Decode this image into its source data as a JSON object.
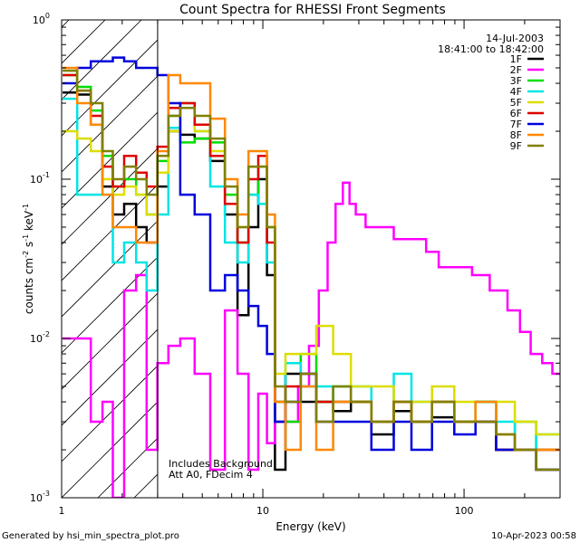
{
  "chart_data": {
    "type": "line",
    "title": "Count Spectra for RHESSI Front Segments",
    "xlabel": "Energy (keV)",
    "ylabel": {
      "prefix": "counts cm",
      "exp1": "-2",
      "mid1": " s",
      "exp2": "-1",
      "mid2": " keV",
      "exp3": "-1"
    },
    "xscale": "log",
    "yscale": "log",
    "xlim": [
      1,
      300
    ],
    "ylim": [
      0.001,
      1
    ],
    "x_ticks": [
      {
        "value": 1,
        "label": "1"
      },
      {
        "value": 10,
        "label": "10"
      },
      {
        "value": 100,
        "label": "100"
      }
    ],
    "y_ticks": [
      {
        "value": 0.001,
        "base": "10",
        "exp": "-3"
      },
      {
        "value": 0.01,
        "base": "10",
        "exp": "-2"
      },
      {
        "value": 0.1,
        "base": "10",
        "exp": "-1"
      },
      {
        "value": 1,
        "base": "10",
        "exp": "0"
      }
    ],
    "date_label": "14-Jul-2003",
    "time_label": "18:41:00 to 18:42:00",
    "annotations": [
      "Includes Background",
      "Att A0, FDecim 4"
    ],
    "hatched_region": [
      1,
      3
    ],
    "legend_position": "top-right",
    "series": [
      {
        "name": "1F",
        "color": "#000000",
        "x": [
          1.1,
          1.3,
          1.5,
          1.7,
          1.9,
          2.2,
          2.5,
          2.8,
          3.2,
          3.6,
          4.2,
          5,
          6,
          7,
          8,
          9,
          10,
          11,
          12,
          14,
          17,
          20,
          25,
          30,
          40,
          50,
          60,
          80,
          100,
          130,
          160,
          200,
          260
        ],
        "y": [
          0.35,
          0.34,
          0.22,
          0.09,
          0.06,
          0.07,
          0.05,
          0.04,
          0.09,
          0.2,
          0.19,
          0.18,
          0.13,
          0.06,
          0.014,
          0.05,
          0.1,
          0.025,
          0.0015,
          0.006,
          0.004,
          0.004,
          0.0035,
          0.004,
          0.0025,
          0.0035,
          0.003,
          0.0032,
          0.003,
          0.004,
          0.002,
          0.002,
          0.0015
        ]
      },
      {
        "name": "2F",
        "color": "#ff00ff",
        "x": [
          1.1,
          1.3,
          1.5,
          1.7,
          1.9,
          2.2,
          2.5,
          2.8,
          3.2,
          3.6,
          4.2,
          5,
          6,
          7,
          8,
          9,
          10,
          11,
          12,
          14,
          16,
          18,
          20,
          22,
          24,
          26,
          28,
          30,
          35,
          40,
          50,
          60,
          70,
          80,
          100,
          120,
          150,
          180,
          200,
          230,
          260,
          290
        ],
        "y": [
          0.01,
          0.01,
          0.003,
          0.004,
          0.001,
          0.02,
          0.025,
          0.002,
          0.007,
          0.009,
          0.01,
          0.006,
          0.0015,
          0.015,
          0.006,
          0.0015,
          0.0045,
          0.0022,
          0.004,
          0.003,
          0.005,
          0.009,
          0.02,
          0.04,
          0.07,
          0.095,
          0.07,
          0.06,
          0.05,
          0.05,
          0.042,
          0.042,
          0.035,
          0.028,
          0.028,
          0.025,
          0.02,
          0.015,
          0.011,
          0.008,
          0.007,
          0.006
        ]
      },
      {
        "name": "3F",
        "color": "#00dd00",
        "x": [
          1.1,
          1.3,
          1.5,
          1.7,
          1.9,
          2.2,
          2.5,
          2.8,
          3.2,
          3.6,
          4.2,
          5,
          6,
          7,
          8,
          9,
          10,
          11,
          12,
          14,
          17,
          20,
          25,
          30,
          40,
          50,
          60,
          80,
          100,
          130,
          160,
          200,
          260
        ],
        "y": [
          0.45,
          0.38,
          0.27,
          0.14,
          0.09,
          0.1,
          0.08,
          0.06,
          0.13,
          0.25,
          0.17,
          0.18,
          0.17,
          0.08,
          0.04,
          0.08,
          0.12,
          0.05,
          0.004,
          0.003,
          0.008,
          0.004,
          0.005,
          0.004,
          0.003,
          0.004,
          0.003,
          0.004,
          0.003,
          0.004,
          0.002,
          0.003,
          0.002
        ]
      },
      {
        "name": "4F",
        "color": "#00e5e5",
        "x": [
          1.1,
          1.3,
          1.5,
          1.7,
          1.9,
          2.2,
          2.5,
          2.8,
          3.2,
          3.6,
          4.2,
          5,
          6,
          7,
          8,
          9,
          10,
          11,
          12,
          14,
          17,
          20,
          25,
          30,
          40,
          50,
          60,
          80,
          100,
          130,
          160,
          200,
          260
        ],
        "y": [
          0.32,
          0.08,
          0.08,
          0.08,
          0.03,
          0.04,
          0.03,
          0.02,
          0.06,
          0.21,
          0.3,
          0.2,
          0.09,
          0.04,
          0.03,
          0.08,
          0.07,
          0.03,
          0.003,
          0.007,
          0.005,
          0.005,
          0.004,
          0.005,
          0.003,
          0.006,
          0.004,
          0.004,
          0.003,
          0.004,
          0.003,
          0.002,
          0.0025
        ]
      },
      {
        "name": "5F",
        "color": "#dddd00",
        "x": [
          1.1,
          1.3,
          1.5,
          1.7,
          1.9,
          2.2,
          2.5,
          2.8,
          3.2,
          3.6,
          4.2,
          5,
          6,
          7,
          8,
          9,
          10,
          11,
          12,
          14,
          17,
          20,
          25,
          30,
          40,
          50,
          60,
          80,
          100,
          130,
          160,
          200,
          260
        ],
        "y": [
          0.2,
          0.18,
          0.15,
          0.1,
          0.08,
          0.09,
          0.08,
          0.06,
          0.11,
          0.2,
          0.3,
          0.2,
          0.15,
          0.07,
          0.05,
          0.12,
          0.12,
          0.05,
          0.006,
          0.008,
          0.008,
          0.012,
          0.008,
          0.005,
          0.005,
          0.004,
          0.004,
          0.005,
          0.004,
          0.003,
          0.004,
          0.003,
          0.0025
        ]
      },
      {
        "name": "6F",
        "color": "#dd0000",
        "x": [
          1.1,
          1.3,
          1.5,
          1.7,
          1.9,
          2.2,
          2.5,
          2.8,
          3.2,
          3.6,
          4.2,
          5,
          6,
          7,
          8,
          9,
          10,
          11,
          12,
          14,
          17,
          20,
          25,
          30,
          40,
          50,
          60,
          80,
          100,
          130,
          160,
          200,
          260
        ],
        "y": [
          0.45,
          0.36,
          0.25,
          0.12,
          0.09,
          0.14,
          0.11,
          0.09,
          0.16,
          0.28,
          0.3,
          0.22,
          0.14,
          0.07,
          0.04,
          0.1,
          0.14,
          0.04,
          0.003,
          0.005,
          0.006,
          0.004,
          0.004,
          0.004,
          0.003,
          0.004,
          0.003,
          0.004,
          0.003,
          0.003,
          0.002,
          0.002,
          0.002
        ]
      },
      {
        "name": "7F",
        "color": "#0000dd",
        "x": [
          1.1,
          1.3,
          1.5,
          1.7,
          1.9,
          2.2,
          2.5,
          2.8,
          3.2,
          3.6,
          4.2,
          5,
          6,
          7,
          8,
          9,
          10,
          11,
          12,
          14,
          17,
          20,
          25,
          30,
          40,
          50,
          60,
          80,
          100,
          130,
          160,
          200,
          260
        ],
        "y": [
          0.4,
          0.5,
          0.55,
          0.55,
          0.58,
          0.55,
          0.5,
          0.5,
          0.45,
          0.3,
          0.08,
          0.06,
          0.02,
          0.025,
          0.02,
          0.016,
          0.012,
          0.008,
          0.003,
          0.004,
          0.006,
          0.003,
          0.003,
          0.003,
          0.002,
          0.003,
          0.002,
          0.003,
          0.0025,
          0.003,
          0.002,
          0.002,
          0.0015
        ]
      },
      {
        "name": "8F",
        "color": "#ff8800",
        "x": [
          1.1,
          1.3,
          1.5,
          1.7,
          1.9,
          2.2,
          2.5,
          2.8,
          3.2,
          3.6,
          4.2,
          5,
          6,
          7,
          8,
          9,
          10,
          11,
          12,
          14,
          17,
          20,
          25,
          30,
          40,
          50,
          60,
          80,
          100,
          130,
          160,
          200,
          260
        ],
        "y": [
          0.5,
          0.3,
          0.22,
          0.08,
          0.05,
          0.05,
          0.04,
          0.04,
          0.15,
          0.45,
          0.4,
          0.4,
          0.24,
          0.1,
          0.06,
          0.15,
          0.15,
          0.06,
          0.004,
          0.002,
          0.005,
          0.002,
          0.004,
          0.004,
          0.003,
          0.004,
          0.003,
          0.004,
          0.003,
          0.004,
          0.0025,
          0.002,
          0.002
        ]
      },
      {
        "name": "9F",
        "color": "#808000",
        "x": [
          1.1,
          1.3,
          1.5,
          1.7,
          1.9,
          2.2,
          2.5,
          2.8,
          3.2,
          3.6,
          4.2,
          5,
          6,
          7,
          8,
          9,
          10,
          11,
          12,
          14,
          17,
          20,
          25,
          30,
          40,
          50,
          60,
          80,
          100,
          130,
          160,
          200,
          260
        ],
        "y": [
          0.48,
          0.36,
          0.3,
          0.15,
          0.1,
          0.12,
          0.1,
          0.08,
          0.14,
          0.25,
          0.28,
          0.25,
          0.18,
          0.09,
          0.05,
          0.12,
          0.12,
          0.05,
          0.005,
          0.004,
          0.006,
          0.003,
          0.005,
          0.004,
          0.003,
          0.004,
          0.003,
          0.004,
          0.003,
          0.003,
          0.0025,
          0.002,
          0.0015
        ]
      }
    ]
  },
  "footer": {
    "left": "Generated by hsi_min_spectra_plot.pro",
    "right": "10-Apr-2023 00:58"
  }
}
